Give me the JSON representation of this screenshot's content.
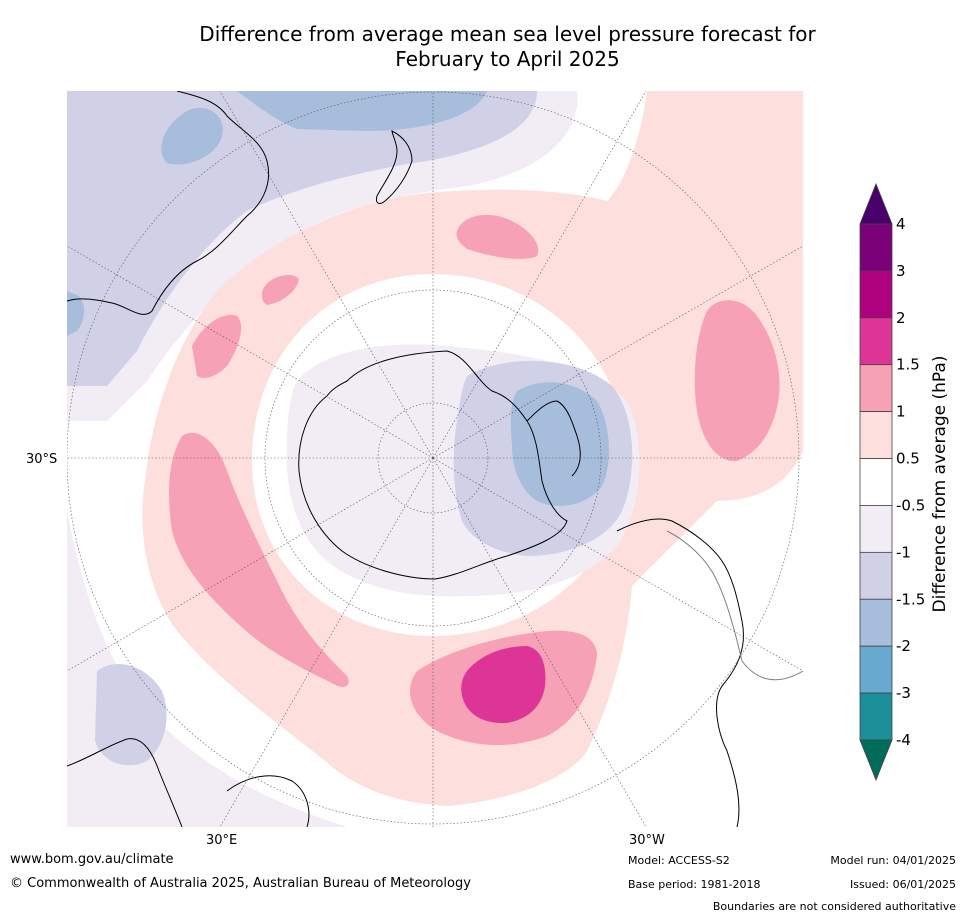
{
  "title_line1": "Difference from average mean sea level pressure forecast for",
  "title_line2": "February to April 2025",
  "map": {
    "projection": "south polar stereographic",
    "lat_label": "30°S",
    "lon_labels": [
      "30°E",
      "30°W"
    ],
    "colors": {
      "ocean": "#ffffff",
      "pos_0_5_1": "#fde0de",
      "pos_1_1_5": "#f7a1b7",
      "pos_1_5_2": "#dd3497",
      "neg_0_5_1": "#f2ecf4",
      "neg_1_1_5": "#d0d1e6",
      "neg_1_5_2": "#a6bddb",
      "coast": "#000000",
      "border": "#808080",
      "grid": "#555555"
    }
  },
  "colorbar": {
    "title": "Difference from average (hPa)",
    "ticks": [
      "4",
      "3",
      "2",
      "1.5",
      "1",
      "0.5",
      "-0.5",
      "-1",
      "-1.5",
      "-2",
      "-3",
      "-4"
    ],
    "bins": [
      {
        "from": 4,
        "to": 3,
        "color": "#7a0177"
      },
      {
        "from": 3,
        "to": 2,
        "color": "#ae017e"
      },
      {
        "from": 2,
        "to": 1.5,
        "color": "#dd3497"
      },
      {
        "from": 1.5,
        "to": 1,
        "color": "#f7a1b7"
      },
      {
        "from": 1,
        "to": 0.5,
        "color": "#fde0de"
      },
      {
        "from": 0.5,
        "to": -0.5,
        "color": "#ffffff"
      },
      {
        "from": -0.5,
        "to": -1,
        "color": "#f2ecf4"
      },
      {
        "from": -1,
        "to": -1.5,
        "color": "#d0d1e6"
      },
      {
        "from": -1.5,
        "to": -2,
        "color": "#a6bddb"
      },
      {
        "from": -2,
        "to": -3,
        "color": "#67a9cf"
      },
      {
        "from": -3,
        "to": -4,
        "color": "#1c9099"
      }
    ],
    "top_arrow_color": "#49006a",
    "bottom_arrow_color": "#016c59"
  },
  "footer": {
    "url": "www.bom.gov.au/climate",
    "copyright": "© Commonwealth of Australia 2025, Australian Bureau of Meteorology",
    "model": "Model: ACCESS-S2",
    "base_period": "Base period: 1981-2018",
    "model_run": "Model run: 04/01/2025",
    "issued": "Issued: 06/01/2025",
    "boundaries": "Boundaries are not considered authoritative"
  }
}
